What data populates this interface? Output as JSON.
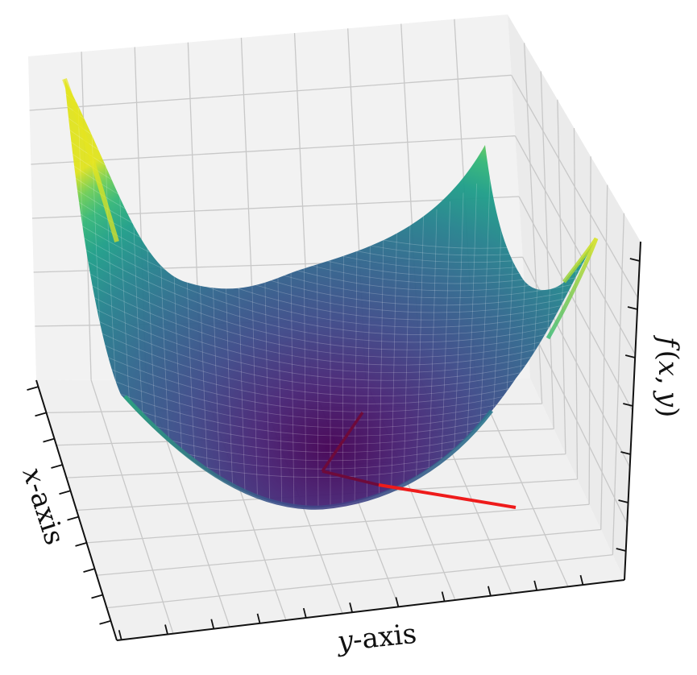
{
  "chart_data": {
    "type": "surface",
    "function": "f(x,y) = x^2 + y^2",
    "xlabel_italic": "x",
    "xlabel_rest": "-axis",
    "ylabel_italic": "y",
    "ylabel_rest": "-axis",
    "zlabel_f": "f",
    "zlabel_open": "(",
    "zlabel_x": "x",
    "zlabel_comma": ",",
    "zlabel_y": "y",
    "zlabel_close": ")",
    "colormap": "viridis",
    "grid": true,
    "pane_color": "#f2f2f2",
    "vector_colors": {
      "dark": "#6e0a3a",
      "red": "#ee1b1b"
    }
  }
}
